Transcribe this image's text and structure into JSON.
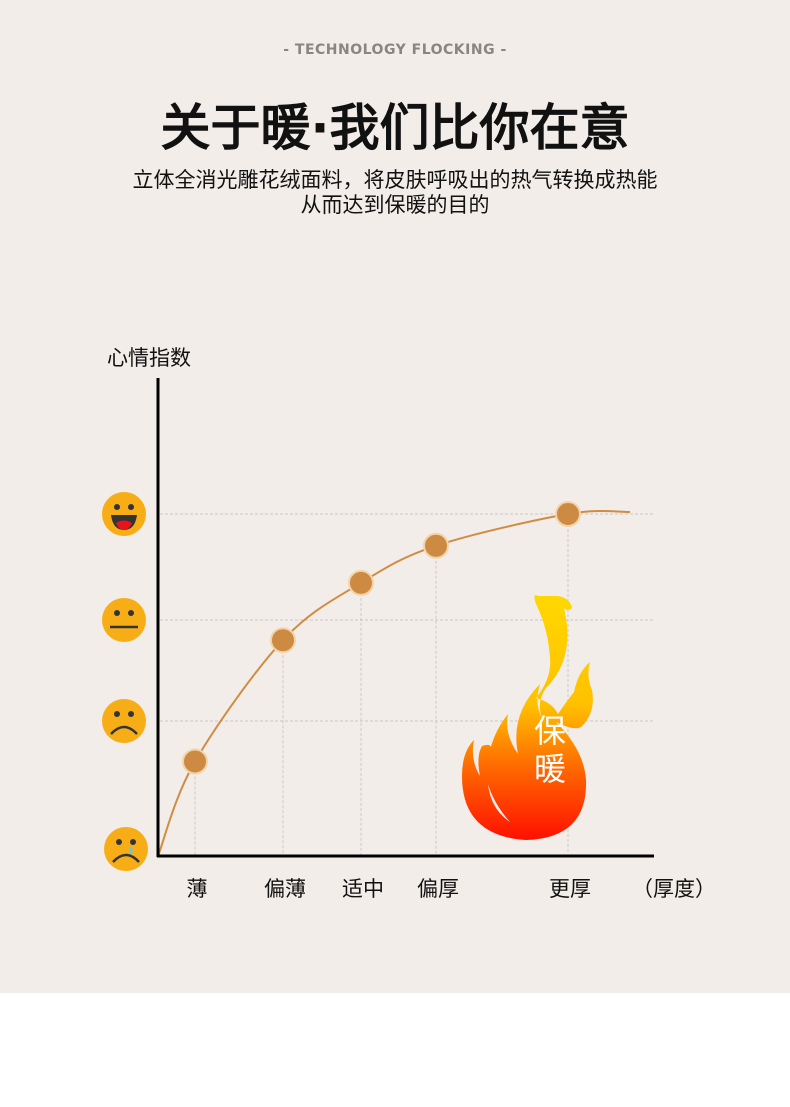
{
  "header": {
    "eyebrow": "- TECHNOLOGY FLOCKING -",
    "title": "关于暖·我们比你在意",
    "subtitle_line1": "立体全消光雕花绒面料，将皮肤呼吸出的热气转换成热能",
    "subtitle_line2": "从而达到保暖的目的"
  },
  "badge": {
    "text_line1": "保",
    "text_line2": "暖",
    "icon": "flame-icon"
  },
  "chart_data": {
    "type": "line",
    "ylabel": "心情指数",
    "xlabel": "（厚度）",
    "categories": [
      "薄",
      "偏薄",
      "适中",
      "偏厚",
      "更厚"
    ],
    "values": [
      0.7,
      1.8,
      2.35,
      2.7,
      3.0
    ],
    "y_levels": [
      {
        "value": 0,
        "icon": "crying-face-icon"
      },
      {
        "value": 1,
        "icon": "sad-face-icon"
      },
      {
        "value": 2,
        "icon": "neutral-face-icon"
      },
      {
        "value": 3,
        "icon": "laughing-face-icon"
      }
    ],
    "ylim": [
      0,
      3
    ],
    "grid": true,
    "colors": {
      "line": "#d08c42",
      "point": "#cd8a43",
      "point_border": "#f3d4a8",
      "axis": "#000000",
      "grid": "#bbbbbb"
    }
  }
}
